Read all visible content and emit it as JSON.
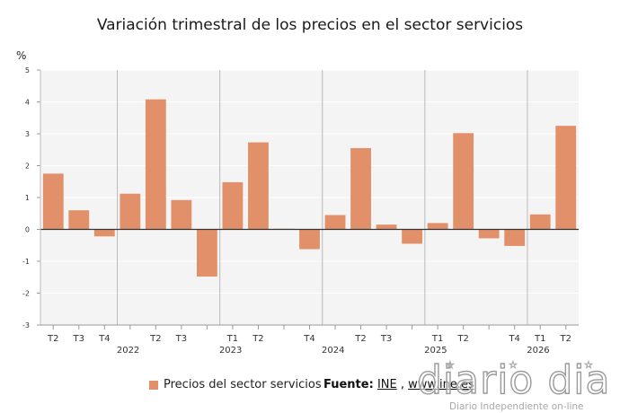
{
  "chart_data": {
    "type": "bar",
    "title": "Variación trimestral de los precios en el sector servicios",
    "ylabel": "%",
    "ylim": [
      -3,
      5
    ],
    "yticks": [
      -3,
      -2,
      -1,
      0,
      1,
      2,
      3,
      4,
      5
    ],
    "grid": true,
    "legend_position": "bottom-left",
    "quarters": [
      "T2",
      "T3",
      "T4",
      "T1",
      "T2",
      "T3",
      "T4",
      "T1",
      "T2",
      "T3",
      "T4",
      "T1",
      "T2",
      "T3",
      "T4",
      "T1",
      "T2",
      "T3",
      "T4",
      "T1",
      "T2"
    ],
    "quarter_labels": [
      "T2",
      "T3",
      "T4",
      "",
      "T2",
      "T3",
      "",
      "T1",
      "T2",
      "",
      "T4",
      "",
      "T2",
      "T3",
      "",
      "T1",
      "T2",
      "",
      "T4",
      "T1",
      "T2"
    ],
    "year_labels": [
      {
        "index": 3,
        "label": "2022"
      },
      {
        "index": 7,
        "label": "2023"
      },
      {
        "index": 11,
        "label": "2024"
      },
      {
        "index": 15,
        "label": "2025"
      },
      {
        "index": 19,
        "label": "2026"
      }
    ],
    "series": [
      {
        "name": "Precios del sector servicios",
        "color": "#e2906a",
        "values": [
          1.75,
          0.6,
          -0.22,
          1.12,
          4.08,
          0.92,
          -1.48,
          1.48,
          2.73,
          0.02,
          -0.62,
          0.45,
          2.55,
          0.15,
          -0.45,
          0.2,
          3.02,
          -0.28,
          -0.52,
          0.47,
          3.25
        ]
      }
    ]
  },
  "legend": {
    "label": "Precios del sector servicios",
    "color": "#e2906a"
  },
  "source": {
    "prefix": "Fuente:",
    "org": "INE",
    "separator": ",",
    "site": "www.ine.es"
  },
  "watermark": {
    "logo_text": "diario dia",
    "tagline": "Diario Independiente on-line"
  }
}
